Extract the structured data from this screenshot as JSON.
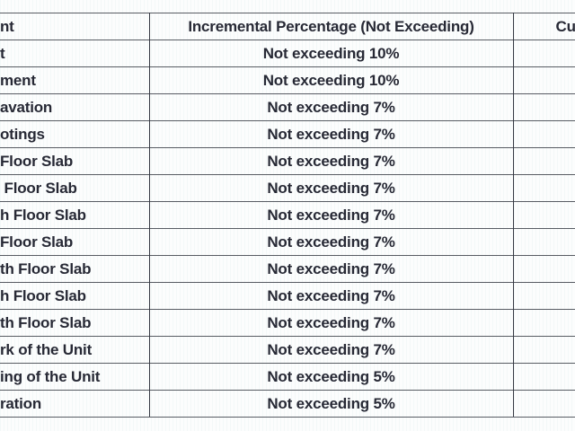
{
  "colors": {
    "background": "#fcfdfd",
    "text": "#272935",
    "horizontal_border": "#585c63",
    "vertical_border": "#353943"
  },
  "table": {
    "columns": [
      {
        "id": "stage",
        "header": "nt"
      },
      {
        "id": "incremental",
        "header": "Incremental Percentage (Not Exceeding)"
      },
      {
        "id": "cumulative",
        "header": "Cu"
      }
    ],
    "rows": [
      {
        "stage": "t",
        "incremental": "Not exceeding 10%",
        "cumulative": ""
      },
      {
        "stage": "ment",
        "incremental": "Not exceeding 10%",
        "cumulative": ""
      },
      {
        "stage": "avation",
        "incremental": "Not exceeding 7%",
        "cumulative": ""
      },
      {
        "stage": "otings",
        "incremental": "Not exceeding 7%",
        "cumulative": ""
      },
      {
        "stage": "Floor Slab",
        "incremental": "Not exceeding 7%",
        "cumulative": ""
      },
      {
        "stage": " Floor Slab",
        "incremental": "Not exceeding 7%",
        "cumulative": ""
      },
      {
        "stage": "h Floor Slab",
        "incremental": "Not exceeding 7%",
        "cumulative": ""
      },
      {
        "stage": "Floor Slab",
        "incremental": "Not exceeding 7%",
        "cumulative": ""
      },
      {
        "stage": "th Floor Slab",
        "incremental": "Not exceeding 7%",
        "cumulative": ""
      },
      {
        "stage": "h Floor Slab",
        "incremental": "Not exceeding 7%",
        "cumulative": ""
      },
      {
        "stage": "th Floor Slab",
        "incremental": "Not exceeding 7%",
        "cumulative": ""
      },
      {
        "stage": "rk of the Unit",
        "incremental": "Not exceeding 7%",
        "cumulative": ""
      },
      {
        "stage": "ing of the Unit",
        "incremental": "Not exceeding 5%",
        "cumulative": ""
      },
      {
        "stage": "ration",
        "incremental": "Not exceeding 5%",
        "cumulative": ""
      }
    ]
  }
}
